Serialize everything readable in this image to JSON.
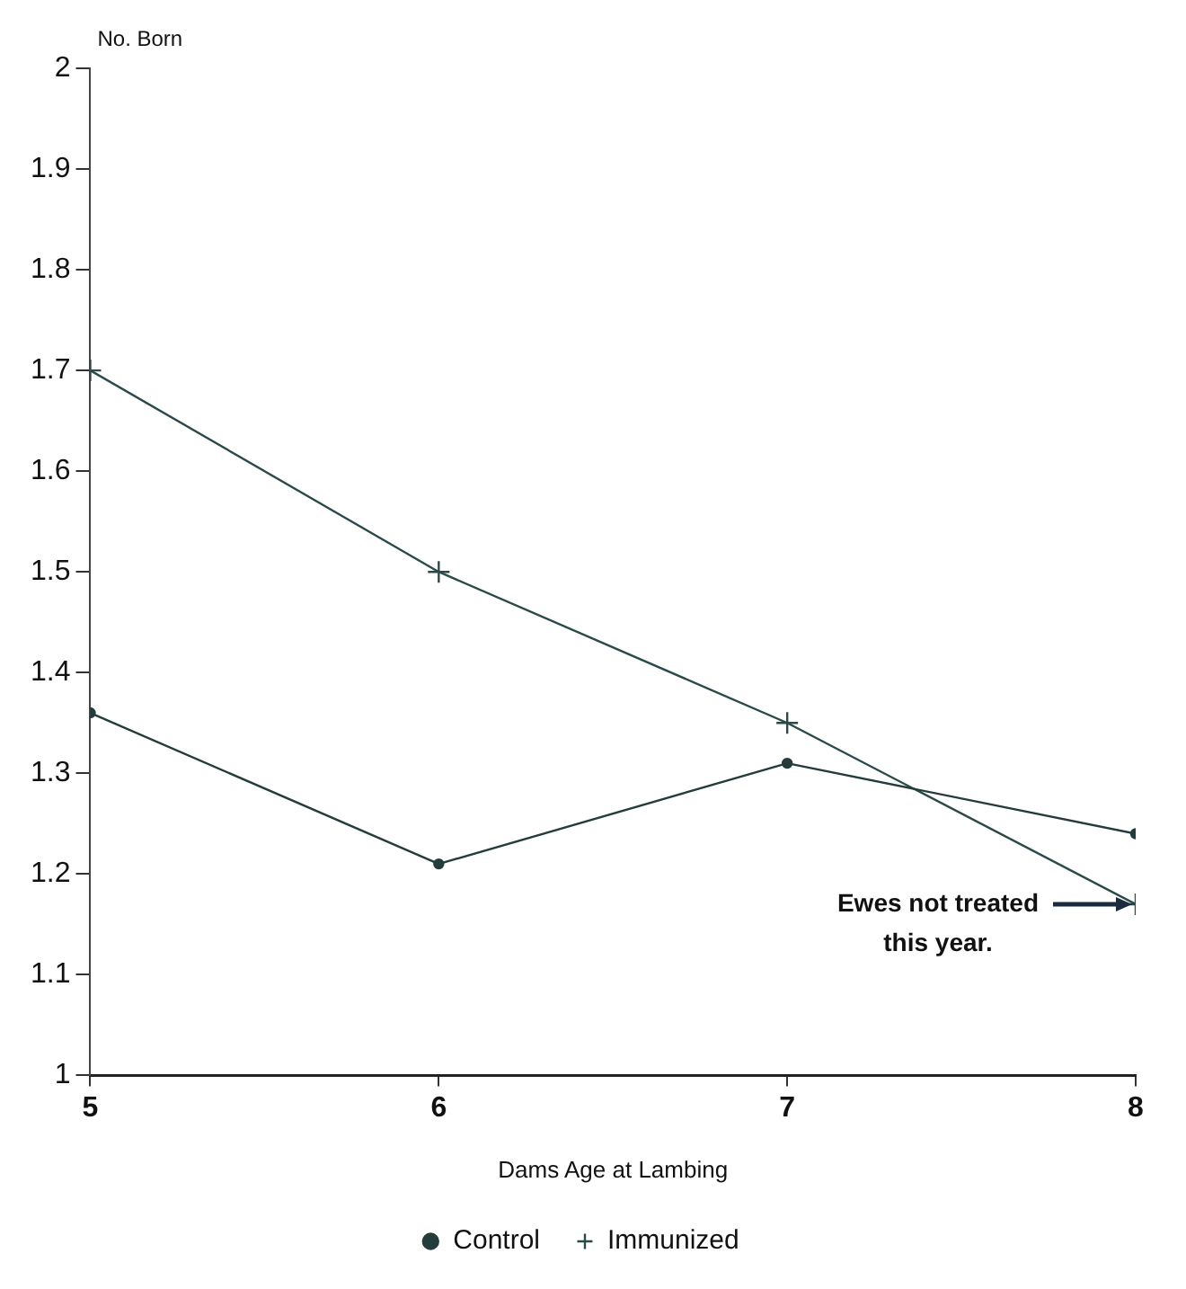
{
  "chart_data": {
    "type": "line",
    "ylabel": "No. Born",
    "xlabel": "Dams Age at Lambing",
    "x": [
      5,
      6,
      7,
      8
    ],
    "xlim": [
      5,
      8
    ],
    "xticks": [
      5,
      6,
      7,
      8
    ],
    "ylim": [
      1,
      2
    ],
    "yticks": [
      1,
      1.1,
      1.2,
      1.3,
      1.4,
      1.5,
      1.6,
      1.7,
      1.8,
      1.9,
      2
    ],
    "series": [
      {
        "name": "Control",
        "color": "#243c3c",
        "values": [
          1.36,
          1.21,
          1.31,
          1.24
        ],
        "marker": "circle"
      },
      {
        "name": "Immunized",
        "color": "#2a4a4a",
        "values": [
          1.7,
          1.5,
          1.35,
          1.17
        ],
        "marker": "cross"
      }
    ],
    "annotations": [
      {
        "text": "Ewes not treated this year.",
        "x": 8,
        "y": 1.17
      }
    ],
    "grid": false,
    "legend": "bottom",
    "line_style": "solid"
  }
}
